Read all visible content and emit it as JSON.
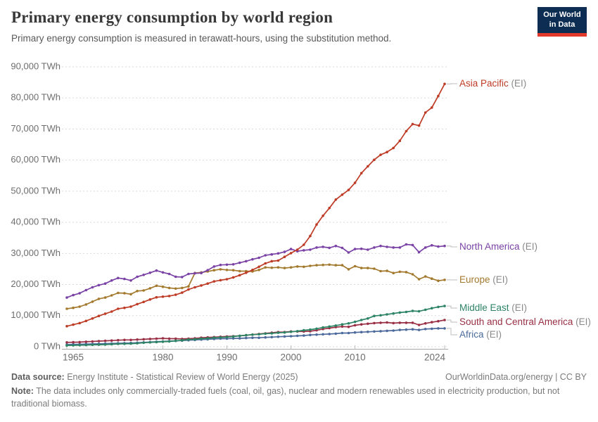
{
  "header": {
    "title": "Primary energy consumption by world region",
    "subtitle": "Primary energy consumption is measured in terawatt-hours, using the substitution method.",
    "logo": {
      "line1": "Our World",
      "line2": "in Data"
    }
  },
  "chart_data": {
    "type": "line",
    "title": "Primary energy consumption by world region",
    "unit": "TWh",
    "xlabel": "",
    "ylabel": "",
    "ylim": [
      0,
      90000
    ],
    "grid": "horizontal-dashed",
    "legend_position": "right",
    "x_ticks": [
      1965,
      1980,
      1990,
      2000,
      2010,
      2024
    ],
    "y_ticks": [
      0,
      10000,
      20000,
      30000,
      40000,
      50000,
      60000,
      70000,
      80000,
      90000
    ],
    "y_tick_labels": [
      "0 TWh",
      "10,000 TWh",
      "20,000 TWh",
      "30,000 TWh",
      "40,000 TWh",
      "50,000 TWh",
      "60,000 TWh",
      "70,000 TWh",
      "80,000 TWh",
      "90,000 TWh"
    ],
    "years": [
      1965,
      1966,
      1967,
      1968,
      1969,
      1970,
      1971,
      1972,
      1973,
      1974,
      1975,
      1976,
      1977,
      1978,
      1979,
      1980,
      1981,
      1982,
      1983,
      1984,
      1985,
      1986,
      1987,
      1988,
      1989,
      1990,
      1991,
      1992,
      1993,
      1994,
      1995,
      1996,
      1997,
      1998,
      1999,
      2000,
      2001,
      2002,
      2003,
      2004,
      2005,
      2006,
      2007,
      2008,
      2009,
      2010,
      2011,
      2012,
      2013,
      2014,
      2015,
      2016,
      2017,
      2018,
      2019,
      2020,
      2021,
      2022,
      2023,
      2024
    ],
    "series": [
      {
        "name": "Asia Pacific",
        "suffix": " (EI)",
        "color": "#be3b25",
        "values": [
          6600,
          7100,
          7600,
          8300,
          9100,
          9900,
          10600,
          11300,
          12200,
          12500,
          12900,
          13700,
          14400,
          15200,
          15900,
          16100,
          16300,
          16700,
          17400,
          18400,
          19100,
          19700,
          20300,
          21000,
          21400,
          21700,
          22300,
          23000,
          23800,
          24700,
          25700,
          26800,
          27500,
          27700,
          28900,
          30100,
          31200,
          32800,
          35600,
          39300,
          42100,
          44600,
          47300,
          48900,
          50400,
          52700,
          55800,
          58000,
          60100,
          61700,
          62600,
          63900,
          66200,
          69300,
          71600,
          71100,
          75300,
          76900,
          80600,
          84500
        ]
      },
      {
        "name": "North America",
        "suffix": " (EI)",
        "color": "#7a42a5",
        "values": [
          15800,
          16600,
          17200,
          18200,
          19100,
          19800,
          20300,
          21300,
          22100,
          21800,
          21300,
          22500,
          23100,
          23800,
          24500,
          23900,
          23400,
          22500,
          22400,
          23400,
          23600,
          23700,
          24600,
          25800,
          26300,
          26400,
          26500,
          27000,
          27500,
          28100,
          28600,
          29400,
          29700,
          30000,
          30500,
          31400,
          30700,
          31000,
          31200,
          31900,
          32100,
          31800,
          32400,
          31800,
          30300,
          31400,
          31500,
          31200,
          31900,
          32400,
          32100,
          31900,
          31900,
          32900,
          32700,
          30400,
          31900,
          32600,
          32200,
          32400
        ]
      },
      {
        "name": "Europe",
        "suffix": " (EI)",
        "color": "#a3792d",
        "values": [
          12200,
          12500,
          12900,
          13600,
          14500,
          15400,
          15800,
          16500,
          17300,
          17200,
          16900,
          17900,
          18100,
          18800,
          19600,
          19300,
          18900,
          18700,
          18900,
          19400,
          23700,
          23900,
          24200,
          24600,
          24900,
          24700,
          24600,
          24300,
          24300,
          24200,
          24700,
          25500,
          25400,
          25500,
          25300,
          25500,
          25800,
          25700,
          26000,
          26200,
          26300,
          26400,
          26200,
          26200,
          24900,
          25900,
          25300,
          25300,
          25100,
          24300,
          24400,
          23700,
          24100,
          24000,
          23300,
          21700,
          22600,
          21900,
          21200,
          21500
        ]
      },
      {
        "name": "Middle East",
        "suffix": " (EI)",
        "color": "#2d8465",
        "values": [
          400,
          450,
          500,
          550,
          600,
          650,
          700,
          800,
          900,
          950,
          1000,
          1100,
          1300,
          1400,
          1500,
          1600,
          1700,
          1900,
          2100,
          2300,
          2400,
          2600,
          2700,
          2900,
          3000,
          3100,
          3300,
          3500,
          3700,
          3900,
          4000,
          4200,
          4300,
          4500,
          4600,
          4800,
          5000,
          5300,
          5500,
          5800,
          6200,
          6500,
          6800,
          7200,
          7500,
          8000,
          8600,
          9100,
          9900,
          10100,
          10400,
          10700,
          11000,
          11200,
          11500,
          11400,
          11900,
          12400,
          12800,
          13100
        ]
      },
      {
        "name": "South and Central America",
        "suffix": " (EI)",
        "color": "#992f44",
        "values": [
          1400,
          1450,
          1500,
          1600,
          1700,
          1800,
          1900,
          2000,
          2100,
          2200,
          2200,
          2300,
          2400,
          2500,
          2600,
          2700,
          2600,
          2600,
          2500,
          2600,
          2700,
          2900,
          3000,
          3100,
          3200,
          3300,
          3400,
          3500,
          3700,
          3900,
          4100,
          4300,
          4500,
          4700,
          4700,
          4900,
          4900,
          4900,
          5000,
          5300,
          5700,
          6000,
          6300,
          6500,
          6400,
          6900,
          7200,
          7400,
          7600,
          7700,
          7800,
          7600,
          7700,
          7700,
          7700,
          7000,
          7500,
          7900,
          8200,
          8600
        ]
      },
      {
        "name": "Africa",
        "suffix": " (EI)",
        "color": "#4c6a9c",
        "values": [
          700,
          750,
          800,
          850,
          900,
          950,
          1000,
          1050,
          1100,
          1150,
          1200,
          1300,
          1400,
          1500,
          1600,
          1700,
          1800,
          1900,
          2000,
          2100,
          2200,
          2300,
          2400,
          2500,
          2600,
          2600,
          2700,
          2700,
          2800,
          2900,
          2900,
          3000,
          3100,
          3200,
          3300,
          3400,
          3500,
          3600,
          3800,
          3900,
          4000,
          4100,
          4200,
          4400,
          4400,
          4600,
          4700,
          4800,
          4900,
          5000,
          5100,
          5200,
          5400,
          5500,
          5600,
          5400,
          5700,
          5800,
          5900,
          5900
        ]
      }
    ]
  },
  "footer": {
    "datasource_label": "Data source:",
    "datasource_text": " Energy Institute - Statistical Review of World Energy (2025)",
    "link_text": "OurWorldinData.org/energy | CC BY",
    "note_label": "Note:",
    "note_text": " The data includes only commercially-traded fuels (coal, oil, gas), nuclear and modern renewables used in electricity production, but not traditional biomass."
  }
}
